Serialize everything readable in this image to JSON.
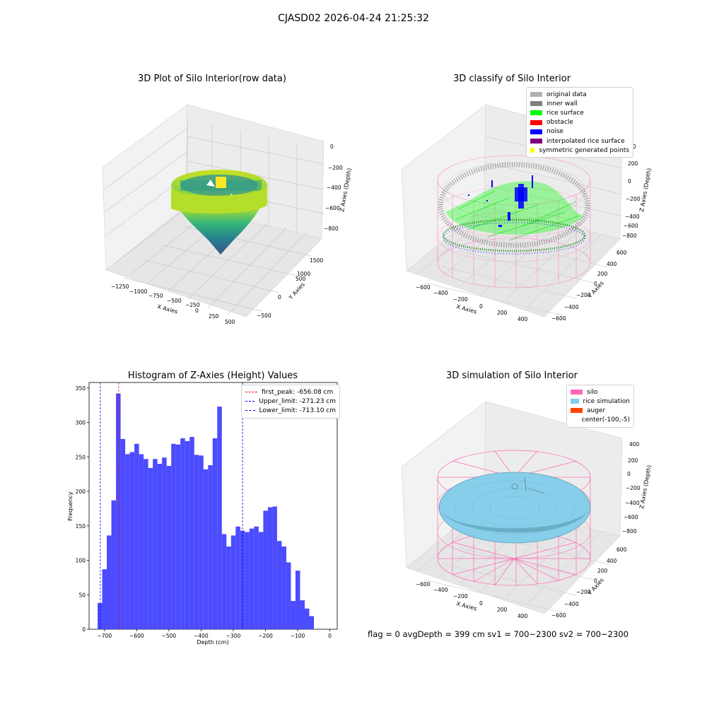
{
  "suptitle": "CJASD02 2026-04-24 21:25:32",
  "status_line": "flag = 0     avgDepth = 399 cm  sv1 = 700~2300  sv2 = 700~2300",
  "colors": {
    "hist_bar": "#4b4bff",
    "first_peak": "#ff0000",
    "limits": "#0000ff",
    "silo": "#ff69b4",
    "rice_sim": "#87ceeb",
    "auger": "#ff4500",
    "noise": "#0000ff",
    "rice_surface": "#00ff00",
    "inner_wall": "#808080"
  },
  "chart_data": [
    {
      "type": "scatter",
      "title": "3D Plot of Silo Interior(row data)",
      "xlabel": "X Axies",
      "ylabel": "Y Axies",
      "zlabel": "Z Axies (Depth)",
      "xticks": [
        "−1250",
        "−1000",
        "−750",
        "−500",
        "−250",
        "0",
        "250",
        "500"
      ],
      "yticks": [
        "−500",
        "0",
        "500",
        "1000",
        "1500"
      ],
      "zticks": [
        "0",
        "−200",
        "−400",
        "−600",
        "−800"
      ],
      "colormap": "viridis"
    },
    {
      "type": "scatter",
      "title": "3D classify of Silo Interior",
      "xlabel": "X Axies",
      "ylabel": "Y Axies",
      "zlabel": "Z Axies (Depth)",
      "xticks": [
        "−600",
        "−400",
        "−200",
        "0",
        "200",
        "400"
      ],
      "yticks": [
        "−600",
        "−400",
        "−200",
        "0",
        "200",
        "400",
        "600"
      ],
      "zticks": [
        "200",
        "0",
        "−200",
        "−400",
        "−600",
        "−800"
      ],
      "zticks_partial": [
        "00"
      ],
      "legend": [
        {
          "label": "original data",
          "color": "#b0b0b0"
        },
        {
          "label": "inner wall",
          "color": "#808080"
        },
        {
          "label": "rice surface",
          "color": "#00ff00"
        },
        {
          "label": "obstacle",
          "color": "#ff0000"
        },
        {
          "label": "noise",
          "color": "#0000ff"
        },
        {
          "label": "interpolated rice surface",
          "color": "#800080"
        },
        {
          "label": "symmetric generated points",
          "color": "#ffff00"
        }
      ]
    },
    {
      "type": "bar",
      "title": "Histogram of Z-Axies (Height) Values",
      "xlabel": "Depth (cm)",
      "ylabel": "Frequency",
      "xlim": [
        -748,
        23
      ],
      "ylim": [
        0,
        358
      ],
      "xticks": [
        -700,
        -600,
        -500,
        -400,
        -300,
        -200,
        -100,
        0
      ],
      "yticks": [
        0,
        50,
        100,
        150,
        200,
        250,
        300,
        350
      ],
      "bin_start": -721.6,
      "bin_width": 14.3,
      "values": [
        38,
        87,
        136,
        187,
        342,
        276,
        254,
        257,
        269,
        254,
        247,
        234,
        247,
        240,
        249,
        237,
        269,
        268,
        277,
        273,
        279,
        253,
        252,
        232,
        238,
        277,
        323,
        138,
        120,
        136,
        149,
        143,
        141,
        146,
        149,
        141,
        172,
        177,
        178,
        128,
        120,
        97,
        41,
        85,
        42,
        30,
        19
      ],
      "vlines": [
        {
          "label": "first_peak: -656.08 cm",
          "x": -656.08,
          "color": "#ff0000"
        },
        {
          "label": "Upper_limit: -271.23 cm",
          "x": -271.23,
          "color": "#0000ff"
        },
        {
          "label": "Lower_limit: -713.10 cm",
          "x": -713.1,
          "color": "#0000ff"
        }
      ]
    },
    {
      "type": "scatter",
      "title": "3D simulation of Silo Interior",
      "xlabel": "X Axies",
      "ylabel": "Y Axies",
      "zlabel": "Z Axies (Depth)",
      "xticks": [
        "−600",
        "−400",
        "−200",
        "0",
        "200",
        "400"
      ],
      "yticks": [
        "−600",
        "−400",
        "−200",
        "0",
        "200",
        "400",
        "600"
      ],
      "zticks": [
        "400",
        "200",
        "0",
        "−200",
        "−400",
        "−600",
        "−800"
      ],
      "legend": [
        {
          "label": "silo",
          "color": "#ff69b4"
        },
        {
          "label": "rice simulation",
          "color": "#87ceeb"
        },
        {
          "label": "auger",
          "color": "#ff4500"
        },
        {
          "label": "center(-100,-5)",
          "color": "#ffffff"
        }
      ]
    }
  ]
}
